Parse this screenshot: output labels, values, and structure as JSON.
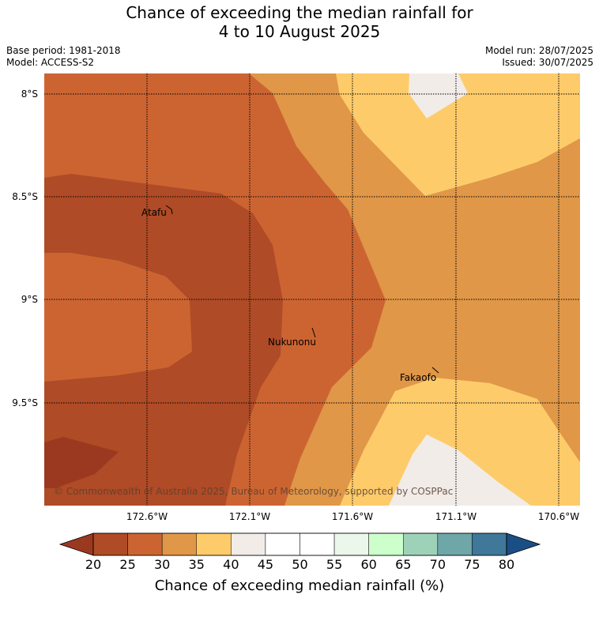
{
  "title": {
    "line1": "Chance of exceeding the median rainfall for",
    "line2": "4 to 10 August 2025"
  },
  "meta": {
    "base_period": "Base period: 1981-2018",
    "model": "Model: ACCESS-S2",
    "model_run": "Model run: 28/07/2025",
    "issued": "Issued: 30/07/2025"
  },
  "map": {
    "lat_labels": [
      "8°S",
      "8.5°S",
      "9°S",
      "9.5°S"
    ],
    "lon_labels": [
      "172.6°W",
      "172.1°W",
      "171.6°W",
      "171.1°W",
      "170.6°W"
    ],
    "places": [
      "Atafu",
      "Nukunonu",
      "Fakaofo"
    ],
    "copyright": "© Commonwealth of Australia 2025, Bureau of Meteorology, supported by COSPPac",
    "colors": {
      "lt20": "#9b3920",
      "20_25": "#af4b26",
      "25_30": "#cc6432",
      "30_35": "#e09748",
      "35_40": "#fecb6a",
      "40_45": "#f1ece8"
    }
  },
  "colorbar": {
    "title": "Chance of exceeding median rainfall (%)",
    "ticks": [
      "20",
      "25",
      "30",
      "35",
      "40",
      "45",
      "50",
      "55",
      "60",
      "65",
      "70",
      "75",
      "80"
    ],
    "colors": [
      "#af4b26",
      "#cc6432",
      "#e09748",
      "#fecb6a",
      "#f1ece8",
      "#ffffff",
      "#ffffff",
      "#eaf7ea",
      "#ccffcc",
      "#9ed2b8",
      "#6fa6a8",
      "#3f7898"
    ],
    "under_color": "#9b3920",
    "over_color": "#1a4f85"
  }
}
